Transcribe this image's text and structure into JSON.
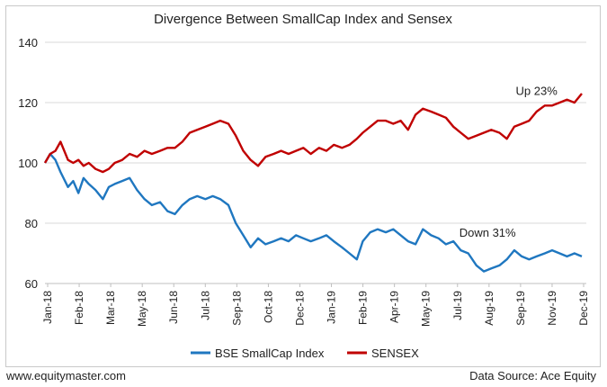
{
  "site": "www.equitymaster.com",
  "source": "Data Source: Ace Equity",
  "chart_data": {
    "type": "line",
    "title": "Divergence Between SmallCap Index and Sensex",
    "xlabel": "",
    "ylabel": "",
    "ylim": [
      60,
      140
    ],
    "yticks": [
      60,
      80,
      100,
      120,
      140
    ],
    "xticks": [
      "Jan-18",
      "Feb-18",
      "Mar-18",
      "May-18",
      "Jun-18",
      "Jul-18",
      "Sep-18",
      "Oct-18",
      "Dec-18",
      "Jan-19",
      "Feb-19",
      "Apr-19",
      "May-19",
      "Jul-19",
      "Aug-19",
      "Sep-19",
      "Nov-19",
      "Dec-19"
    ],
    "grid": "horizontal",
    "legend": "bottom",
    "series": [
      {
        "name": "BSE SmallCap Index",
        "color": "#1f77c0",
        "x": [
          "2018-01-01",
          "2018-01-08",
          "2018-01-15",
          "2018-01-22",
          "2018-02-01",
          "2018-02-08",
          "2018-02-15",
          "2018-02-22",
          "2018-03-01",
          "2018-03-10",
          "2018-03-20",
          "2018-03-28",
          "2018-04-05",
          "2018-04-15",
          "2018-04-25",
          "2018-05-05",
          "2018-05-15",
          "2018-05-25",
          "2018-06-05",
          "2018-06-15",
          "2018-06-25",
          "2018-07-05",
          "2018-07-15",
          "2018-07-25",
          "2018-08-05",
          "2018-08-15",
          "2018-08-25",
          "2018-09-05",
          "2018-09-15",
          "2018-09-25",
          "2018-10-05",
          "2018-10-15",
          "2018-10-25",
          "2018-11-05",
          "2018-11-15",
          "2018-11-25",
          "2018-12-05",
          "2018-12-15",
          "2018-12-25",
          "2019-01-05",
          "2019-01-15",
          "2019-01-25",
          "2019-02-05",
          "2019-02-15",
          "2019-02-25",
          "2019-03-05",
          "2019-03-15",
          "2019-03-25",
          "2019-04-05",
          "2019-04-15",
          "2019-04-25",
          "2019-05-05",
          "2019-05-15",
          "2019-05-25",
          "2019-06-05",
          "2019-06-15",
          "2019-06-25",
          "2019-07-05",
          "2019-07-15",
          "2019-07-25",
          "2019-08-05",
          "2019-08-15",
          "2019-08-25",
          "2019-09-05",
          "2019-09-15",
          "2019-09-25",
          "2019-10-05",
          "2019-10-15",
          "2019-10-25",
          "2019-11-05",
          "2019-11-15",
          "2019-11-25",
          "2019-12-05",
          "2019-12-15",
          "2019-12-25"
        ],
        "values": [
          100,
          103,
          101,
          97,
          92,
          94,
          90,
          95,
          93,
          91,
          88,
          92,
          93,
          94,
          95,
          91,
          88,
          86,
          87,
          84,
          83,
          86,
          88,
          89,
          88,
          89,
          88,
          86,
          80,
          76,
          72,
          75,
          73,
          74,
          75,
          74,
          76,
          75,
          74,
          75,
          76,
          74,
          72,
          70,
          68,
          74,
          77,
          78,
          77,
          78,
          76,
          74,
          73,
          78,
          76,
          75,
          73,
          74,
          71,
          70,
          66,
          64,
          65,
          66,
          68,
          71,
          69,
          68,
          69,
          70,
          71,
          70,
          69,
          70,
          69
        ]
      },
      {
        "name": "SENSEX",
        "color": "#c00000",
        "x": [
          "2018-01-01",
          "2018-01-08",
          "2018-01-15",
          "2018-01-22",
          "2018-02-01",
          "2018-02-08",
          "2018-02-15",
          "2018-02-22",
          "2018-03-01",
          "2018-03-10",
          "2018-03-20",
          "2018-03-28",
          "2018-04-05",
          "2018-04-15",
          "2018-04-25",
          "2018-05-05",
          "2018-05-15",
          "2018-05-25",
          "2018-06-05",
          "2018-06-15",
          "2018-06-25",
          "2018-07-05",
          "2018-07-15",
          "2018-07-25",
          "2018-08-05",
          "2018-08-15",
          "2018-08-25",
          "2018-09-05",
          "2018-09-15",
          "2018-09-25",
          "2018-10-05",
          "2018-10-15",
          "2018-10-25",
          "2018-11-05",
          "2018-11-15",
          "2018-11-25",
          "2018-12-05",
          "2018-12-15",
          "2018-12-25",
          "2019-01-05",
          "2019-01-15",
          "2019-01-25",
          "2019-02-05",
          "2019-02-15",
          "2019-02-25",
          "2019-03-05",
          "2019-03-15",
          "2019-03-25",
          "2019-04-05",
          "2019-04-15",
          "2019-04-25",
          "2019-05-05",
          "2019-05-15",
          "2019-05-25",
          "2019-06-05",
          "2019-06-15",
          "2019-06-25",
          "2019-07-05",
          "2019-07-15",
          "2019-07-25",
          "2019-08-05",
          "2019-08-15",
          "2019-08-25",
          "2019-09-05",
          "2019-09-15",
          "2019-09-25",
          "2019-10-05",
          "2019-10-15",
          "2019-10-25",
          "2019-11-05",
          "2019-11-15",
          "2019-11-25",
          "2019-12-05",
          "2019-12-15",
          "2019-12-25"
        ],
        "values": [
          100,
          103,
          104,
          107,
          101,
          100,
          101,
          99,
          100,
          98,
          97,
          98,
          100,
          101,
          103,
          102,
          104,
          103,
          104,
          105,
          105,
          107,
          110,
          111,
          112,
          113,
          114,
          113,
          109,
          104,
          101,
          99,
          102,
          103,
          104,
          103,
          104,
          105,
          103,
          105,
          104,
          106,
          105,
          106,
          108,
          110,
          112,
          114,
          114,
          113,
          114,
          111,
          116,
          118,
          117,
          116,
          115,
          112,
          110,
          108,
          109,
          110,
          111,
          110,
          108,
          112,
          113,
          114,
          117,
          119,
          119,
          120,
          121,
          120,
          123
        ]
      }
    ],
    "annotations": [
      {
        "text": "Up 23%",
        "x": "2019-10-25",
        "y": 124
      },
      {
        "text": "Down 31%",
        "x": "2019-08-20",
        "y": 77
      }
    ]
  }
}
